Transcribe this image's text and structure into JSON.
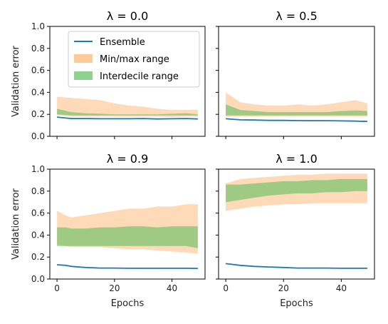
{
  "chart_data": {
    "type": "area",
    "layout": "2x2 grid, shared x axis per column, shared y axis per row",
    "shared_xlabel": "Epochs",
    "shared_ylabel": "Validation error",
    "xticks": [
      0,
      20,
      40
    ],
    "yticks": [
      0.0,
      0.2,
      0.4,
      0.6,
      0.8,
      1.0
    ],
    "xlim": [
      -2.5,
      51.5
    ],
    "ylim": [
      0,
      1.0
    ],
    "legend": {
      "placement": "upper-left of first panel",
      "entries": [
        {
          "label": "Ensemble",
          "kind": "line",
          "color": "#1f77b4"
        },
        {
          "label": "Min/max range",
          "kind": "patch",
          "color": "#ffc999"
        },
        {
          "label": "Interdecile range",
          "kind": "patch",
          "color": "#8fd18f"
        }
      ]
    },
    "series_colors": {
      "ensemble": "#1f77b4",
      "minmax_fill": "#ffbb80",
      "interdecile_fill": "#5fbf5f"
    },
    "panels": [
      {
        "title": "λ = 0.0",
        "epochs": [
          0,
          5,
          10,
          15,
          20,
          25,
          30,
          35,
          40,
          45,
          49
        ],
        "ensemble": [
          0.175,
          0.162,
          0.162,
          0.16,
          0.16,
          0.16,
          0.162,
          0.158,
          0.16,
          0.162,
          0.158
        ],
        "minmax_low": [
          0.19,
          0.18,
          0.18,
          0.18,
          0.18,
          0.18,
          0.18,
          0.18,
          0.175,
          0.18,
          0.18
        ],
        "minmax_high": [
          0.36,
          0.35,
          0.34,
          0.33,
          0.3,
          0.28,
          0.27,
          0.25,
          0.24,
          0.24,
          0.24
        ],
        "interdecile_low": [
          0.2,
          0.19,
          0.19,
          0.19,
          0.19,
          0.19,
          0.19,
          0.19,
          0.19,
          0.19,
          0.19
        ],
        "interdecile_high": [
          0.25,
          0.22,
          0.21,
          0.205,
          0.2,
          0.2,
          0.2,
          0.2,
          0.205,
          0.21,
          0.2
        ]
      },
      {
        "title": "λ = 0.5",
        "epochs": [
          0,
          5,
          10,
          15,
          20,
          25,
          30,
          35,
          40,
          45,
          49
        ],
        "ensemble": [
          0.16,
          0.15,
          0.148,
          0.145,
          0.145,
          0.143,
          0.142,
          0.142,
          0.14,
          0.138,
          0.135
        ],
        "minmax_low": [
          0.18,
          0.18,
          0.18,
          0.18,
          0.18,
          0.18,
          0.18,
          0.18,
          0.18,
          0.18,
          0.18
        ],
        "minmax_high": [
          0.4,
          0.31,
          0.29,
          0.28,
          0.28,
          0.29,
          0.28,
          0.29,
          0.31,
          0.33,
          0.3
        ],
        "interdecile_low": [
          0.19,
          0.19,
          0.19,
          0.19,
          0.19,
          0.19,
          0.19,
          0.19,
          0.19,
          0.19,
          0.19
        ],
        "interdecile_high": [
          0.29,
          0.24,
          0.23,
          0.22,
          0.22,
          0.22,
          0.22,
          0.22,
          0.23,
          0.235,
          0.23
        ]
      },
      {
        "title": "λ = 0.9",
        "epochs": [
          0,
          3,
          5,
          10,
          15,
          20,
          25,
          30,
          35,
          40,
          45,
          49
        ],
        "ensemble": [
          0.13,
          0.125,
          0.115,
          0.105,
          0.1,
          0.1,
          0.098,
          0.098,
          0.098,
          0.098,
          0.098,
          0.097
        ],
        "minmax_low": [
          0.31,
          0.3,
          0.29,
          0.29,
          0.29,
          0.28,
          0.27,
          0.27,
          0.26,
          0.25,
          0.24,
          0.23
        ],
        "minmax_high": [
          0.62,
          0.58,
          0.56,
          0.58,
          0.6,
          0.62,
          0.64,
          0.64,
          0.66,
          0.66,
          0.68,
          0.68
        ],
        "interdecile_low": [
          0.3,
          0.3,
          0.3,
          0.3,
          0.3,
          0.3,
          0.3,
          0.3,
          0.3,
          0.3,
          0.3,
          0.28
        ],
        "interdecile_high": [
          0.47,
          0.47,
          0.46,
          0.46,
          0.47,
          0.47,
          0.48,
          0.48,
          0.47,
          0.48,
          0.48,
          0.48
        ]
      },
      {
        "title": "λ = 1.0",
        "epochs": [
          0,
          5,
          10,
          15,
          20,
          25,
          30,
          35,
          40,
          45,
          49
        ],
        "ensemble": [
          0.14,
          0.125,
          0.115,
          0.11,
          0.105,
          0.1,
          0.1,
          0.1,
          0.098,
          0.098,
          0.098
        ],
        "minmax_low": [
          0.62,
          0.64,
          0.66,
          0.67,
          0.68,
          0.68,
          0.69,
          0.69,
          0.69,
          0.69,
          0.69
        ],
        "minmax_high": [
          0.87,
          0.91,
          0.92,
          0.93,
          0.94,
          0.95,
          0.95,
          0.96,
          0.96,
          0.96,
          0.96
        ],
        "interdecile_low": [
          0.7,
          0.72,
          0.74,
          0.76,
          0.77,
          0.78,
          0.78,
          0.79,
          0.79,
          0.8,
          0.8
        ],
        "interdecile_high": [
          0.86,
          0.86,
          0.87,
          0.88,
          0.89,
          0.89,
          0.9,
          0.9,
          0.91,
          0.91,
          0.91
        ]
      }
    ]
  }
}
